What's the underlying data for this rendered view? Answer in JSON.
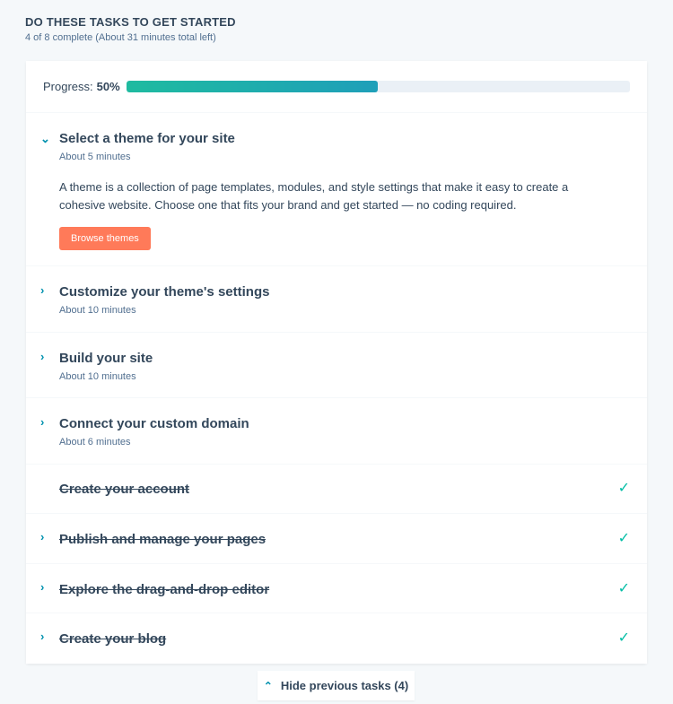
{
  "header": {
    "title": "DO THESE TASKS TO GET STARTED",
    "subtitle": "4 of 8 complete (About 31 minutes total left)"
  },
  "progress": {
    "label": "Progress:",
    "value_text": "50%",
    "value": 50
  },
  "tasks": [
    {
      "title": "Select a theme for your site",
      "time": "About 5 minutes",
      "expanded": true,
      "complete": false,
      "description": "A theme is a collection of page templates, modules, and style settings that make it easy to create a cohesive website. Choose one that fits your brand and get started — no coding required.",
      "button": "Browse themes"
    },
    {
      "title": "Customize your theme's settings",
      "time": "About 10 minutes",
      "complete": false
    },
    {
      "title": "Build your site",
      "time": "About 10 minutes",
      "complete": false
    },
    {
      "title": "Connect your custom domain",
      "time": "About 6 minutes",
      "complete": false
    },
    {
      "title": "Create your account",
      "complete": true
    },
    {
      "title": "Publish and manage your pages",
      "complete": true
    },
    {
      "title": "Explore the drag-and-drop editor",
      "complete": true
    },
    {
      "title": "Create your blog",
      "complete": true
    }
  ],
  "footer": {
    "hide_label": "Hide previous tasks (4)"
  },
  "colors": {
    "accent": "#0091ae",
    "button": "#ff7a59",
    "check": "#00bda5"
  }
}
